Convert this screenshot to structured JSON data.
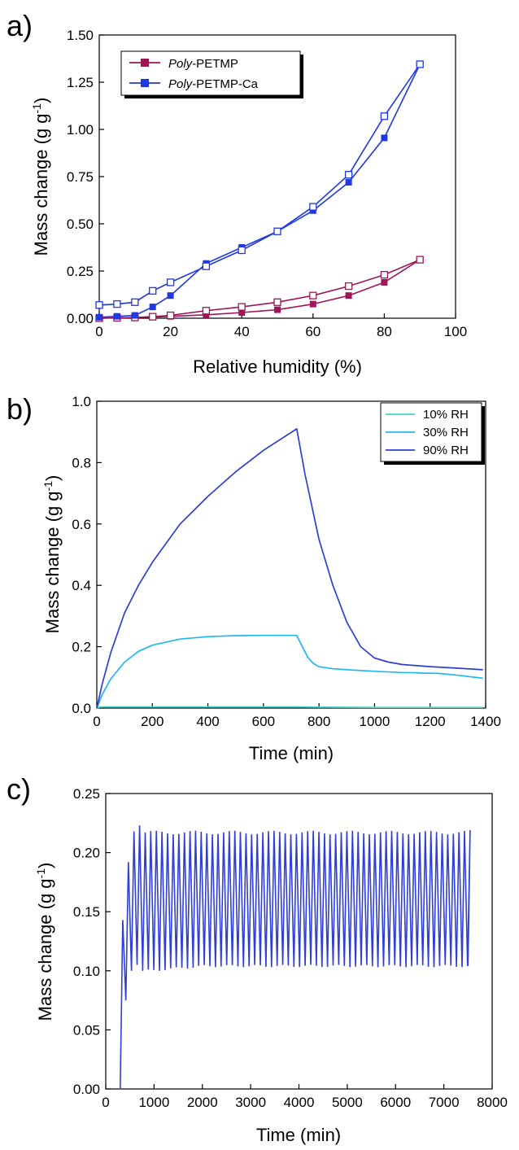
{
  "chart_data": [
    {
      "panel": "a)",
      "type": "line",
      "xlabel": "Relative humidity (%)",
      "ylabel_parts": [
        "Mass change (g g",
        "-1",
        ")"
      ],
      "xlim": [
        0,
        100
      ],
      "ylim": [
        0,
        1.5
      ],
      "xticks": [
        0,
        20,
        40,
        60,
        80,
        100
      ],
      "yticks": [
        0.0,
        0.25,
        0.5,
        0.75,
        1.0,
        1.25,
        1.5
      ],
      "ytick_labels": [
        "0.00",
        "0.25",
        "0.50",
        "0.75",
        "1.00",
        "1.25",
        "1.50"
      ],
      "legend_position": "top-left",
      "series": [
        {
          "name_italic": "Poly",
          "name_rest": "-PETMP",
          "color": "#A0145A",
          "adsorption": {
            "x": [
              0,
              5,
              10,
              15,
              20,
              30,
              40,
              50,
              60,
              70,
              80,
              90
            ],
            "y": [
              0.0,
              0.002,
              0.004,
              0.006,
              0.01,
              0.018,
              0.03,
              0.045,
              0.075,
              0.12,
              0.19,
              0.31
            ]
          },
          "desorption": {
            "x": [
              90,
              80,
              70,
              60,
              50,
              40,
              30,
              20,
              15,
              10,
              5,
              0
            ],
            "y": [
              0.31,
              0.23,
              0.17,
              0.12,
              0.085,
              0.06,
              0.04,
              0.015,
              0.008,
              0.004,
              0.002,
              0.0
            ]
          }
        },
        {
          "name_italic": "Poly",
          "name_rest": "-PETMP-Ca",
          "color": "#2038E0",
          "adsorption": {
            "x": [
              0,
              5,
              10,
              15,
              20,
              30,
              40,
              50,
              60,
              70,
              80,
              90
            ],
            "y": [
              0.005,
              0.01,
              0.015,
              0.06,
              0.12,
              0.29,
              0.375,
              0.46,
              0.57,
              0.72,
              0.955,
              1.345
            ]
          },
          "desorption": {
            "x": [
              90,
              80,
              70,
              60,
              50,
              40,
              30,
              20,
              15,
              10,
              5,
              0
            ],
            "y": [
              1.345,
              1.07,
              0.76,
              0.59,
              0.46,
              0.36,
              0.275,
              0.19,
              0.145,
              0.085,
              0.075,
              0.07
            ]
          }
        }
      ]
    },
    {
      "panel": "b)",
      "type": "line",
      "xlabel": "Time (min)",
      "ylabel_parts": [
        "Mass change (g g",
        "-1",
        ")"
      ],
      "xlim": [
        0,
        1400
      ],
      "ylim": [
        0,
        1.0
      ],
      "xticks": [
        0,
        200,
        400,
        600,
        800,
        1000,
        1200,
        1400
      ],
      "yticks": [
        0.0,
        0.2,
        0.4,
        0.6,
        0.8,
        1.0
      ],
      "ytick_labels": [
        "0.0",
        "0.2",
        "0.4",
        "0.6",
        "0.8",
        "1.0"
      ],
      "legend_position": "top-right",
      "series": [
        {
          "name": "10% RH",
          "color": "#40D8C8",
          "x": [
            0,
            10,
            30,
            100,
            300,
            720,
            800,
            1000,
            1200,
            1390
          ],
          "y": [
            0.0,
            0.003,
            0.004,
            0.004,
            0.004,
            0.004,
            0.003,
            0.002,
            0.002,
            0.002
          ]
        },
        {
          "name": "30% RH",
          "color": "#20B8F0",
          "x": [
            0,
            20,
            50,
            100,
            150,
            200,
            300,
            400,
            500,
            600,
            720,
            740,
            760,
            780,
            800,
            850,
            900,
            1000,
            1100,
            1150,
            1170,
            1230,
            1300,
            1390
          ],
          "y": [
            0.0,
            0.045,
            0.095,
            0.15,
            0.185,
            0.205,
            0.225,
            0.233,
            0.236,
            0.237,
            0.237,
            0.2,
            0.165,
            0.145,
            0.135,
            0.128,
            0.125,
            0.12,
            0.116,
            0.115,
            0.114,
            0.113,
            0.107,
            0.097
          ]
        },
        {
          "name": "90% RH",
          "color": "#2E3ED8",
          "x": [
            0,
            20,
            50,
            100,
            150,
            200,
            300,
            400,
            500,
            600,
            720,
            750,
            800,
            850,
            900,
            950,
            1000,
            1050,
            1100,
            1200,
            1300,
            1390
          ],
          "y": [
            0.0,
            0.08,
            0.18,
            0.31,
            0.4,
            0.475,
            0.6,
            0.69,
            0.77,
            0.84,
            0.91,
            0.76,
            0.55,
            0.4,
            0.28,
            0.2,
            0.163,
            0.15,
            0.142,
            0.135,
            0.13,
            0.125
          ]
        }
      ]
    },
    {
      "panel": "c)",
      "type": "line",
      "xlabel": "Time (min)",
      "ylabel_parts": [
        "Mass change (g g",
        "-1",
        ")"
      ],
      "xlim": [
        0,
        8000
      ],
      "ylim": [
        0,
        0.25
      ],
      "xticks": [
        0,
        1000,
        2000,
        3000,
        4000,
        5000,
        6000,
        7000,
        8000
      ],
      "yticks": [
        0.0,
        0.05,
        0.1,
        0.15,
        0.2,
        0.25
      ],
      "ytick_labels": [
        "0.00",
        "0.05",
        "0.10",
        "0.15",
        "0.20",
        "0.25"
      ],
      "series": [
        {
          "name": "",
          "color": "#2E3ED8",
          "cycle_start_min": 300,
          "first_peaks": [
            0.143,
            0.192,
            0.218,
            0.223
          ],
          "first_troughs": [
            0.075,
            0.1,
            0.105,
            0.1
          ],
          "cycle_period_min": 116,
          "steady_peak": 0.217,
          "steady_trough_range": [
            0.1,
            0.104
          ],
          "last_peak": 0.219,
          "end_min": 7500,
          "end_value": 0.104
        }
      ]
    }
  ]
}
